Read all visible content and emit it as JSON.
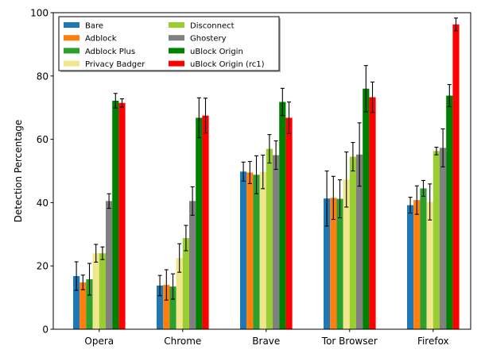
{
  "chart_data": {
    "type": "bar",
    "title": "",
    "xlabel": "",
    "ylabel": "Detection Percentage",
    "ylim": [
      0,
      100
    ],
    "yticks": [
      0,
      20,
      40,
      60,
      80,
      100
    ],
    "grid": false,
    "legend_position": "top-left",
    "categories": [
      "Opera",
      "Chrome",
      "Brave",
      "Tor Browser",
      "Firefox"
    ],
    "series": [
      {
        "name": "Bare",
        "color": "#1f77b4",
        "values": [
          16.8,
          13.8,
          49.8,
          41.3,
          39.2
        ],
        "errors": [
          4.5,
          3.2,
          3.0,
          8.7,
          2.5
        ]
      },
      {
        "name": "Adblock",
        "color": "#ff7f0e",
        "values": [
          14.8,
          14.0,
          49.5,
          41.5,
          40.8
        ],
        "errors": [
          2.3,
          4.8,
          3.5,
          6.8,
          4.5
        ]
      },
      {
        "name": "Adblock Plus",
        "color": "#2ca02c",
        "values": [
          15.8,
          13.5,
          48.8,
          41.2,
          44.5
        ],
        "errors": [
          5.0,
          4.0,
          6.0,
          6.0,
          2.5
        ]
      },
      {
        "name": "Privacy Badger",
        "color": "#f0e68c",
        "values": [
          24.0,
          22.5,
          49.7,
          47.3,
          40.2
        ],
        "errors": [
          2.8,
          4.5,
          5.3,
          8.7,
          5.7
        ]
      },
      {
        "name": "Disconnect",
        "color": "#9acd32",
        "values": [
          24.0,
          28.8,
          57.0,
          54.5,
          56.3
        ],
        "errors": [
          2.0,
          4.0,
          4.5,
          4.5,
          1.2
        ]
      },
      {
        "name": "Ghostery",
        "color": "#808080",
        "values": [
          40.5,
          40.5,
          55.0,
          55.2,
          57.3
        ],
        "errors": [
          2.3,
          4.5,
          4.5,
          10.0,
          6.0
        ]
      },
      {
        "name": "uBlock Origin",
        "color": "#008000",
        "values": [
          72.2,
          66.8,
          71.8,
          76.0,
          73.8
        ],
        "errors": [
          2.3,
          6.3,
          4.3,
          7.3,
          3.5
        ]
      },
      {
        "name": "uBlock Origin (rc1)",
        "color": "#ff0000",
        "values": [
          71.5,
          67.5,
          66.8,
          73.3,
          96.3
        ],
        "errors": [
          1.3,
          5.5,
          5.0,
          4.8,
          2.0
        ]
      }
    ]
  }
}
